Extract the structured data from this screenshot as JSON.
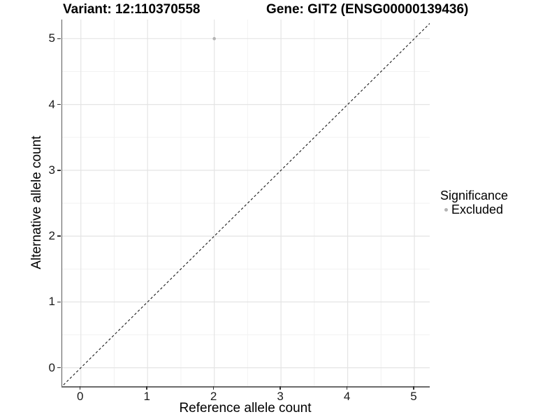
{
  "header": {
    "variant_title": "Variant: 12:110370558",
    "gene_title": "Gene: GIT2 (ENSG00000139436)"
  },
  "axes": {
    "x_label": "Reference allele count",
    "y_label": "Alternative allele count"
  },
  "legend": {
    "title": "Significance",
    "items": [
      {
        "label": "Excluded",
        "color": "#b3b3b3",
        "marker": "circle-icon"
      }
    ]
  },
  "chart_data": {
    "type": "scatter",
    "title": "Variant: 12:110370558 | Gene: GIT2 (ENSG00000139436)",
    "xlabel": "Reference allele count",
    "ylabel": "Alternative allele count",
    "xlim": [
      -0.28,
      5.23
    ],
    "ylim": [
      -0.28,
      5.29
    ],
    "x_ticks": [
      0,
      1,
      2,
      3,
      4,
      5
    ],
    "y_ticks": [
      0,
      1,
      2,
      3,
      4,
      5
    ],
    "x_minor_ticks": [
      0.5,
      1.5,
      2.5,
      3.5,
      4.5
    ],
    "y_minor_ticks": [
      0.5,
      1.5,
      2.5,
      3.5,
      4.5
    ],
    "grid": "major-and-minor",
    "legend_position": "right-middle",
    "series": [
      {
        "name": "Excluded",
        "color": "#b3b3b3",
        "points": [
          {
            "x": 2,
            "y": 5
          }
        ]
      }
    ],
    "reference_line": {
      "slope": 1,
      "intercept": 0,
      "style": "dashed",
      "color": "#1a1a1a"
    }
  },
  "colors": {
    "background": "#ffffff",
    "grid_major": "#e4e4e4",
    "grid_minor": "#f2f2f2",
    "axis_line": "#6b6b6b",
    "tick_mark": "#333333",
    "tick_text": "#1a1a1a",
    "point": "#b3b3b3"
  }
}
